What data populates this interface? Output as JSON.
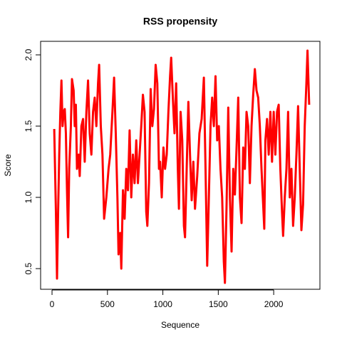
{
  "chart_data": {
    "type": "line",
    "title": "RSS propensity",
    "x_label": "Sequence",
    "y_label": "Score",
    "color": "#ff0000",
    "x": [
      20,
      35,
      45,
      55,
      65,
      75,
      85,
      95,
      105,
      115,
      125,
      135,
      145,
      155,
      170,
      180,
      195,
      205,
      215,
      225,
      240,
      250,
      265,
      280,
      295,
      310,
      325,
      340,
      355,
      370,
      385,
      400,
      415,
      425,
      440,
      455,
      470,
      490,
      510,
      525,
      545,
      560,
      575,
      590,
      600,
      615,
      625,
      640,
      655,
      670,
      685,
      700,
      715,
      730,
      745,
      760,
      775,
      790,
      805,
      820,
      835,
      850,
      860,
      875,
      890,
      905,
      920,
      935,
      950,
      965,
      975,
      990,
      1005,
      1020,
      1035,
      1050,
      1065,
      1075,
      1090,
      1105,
      1120,
      1135,
      1145,
      1160,
      1175,
      1190,
      1200,
      1215,
      1230,
      1245,
      1260,
      1275,
      1290,
      1310,
      1330,
      1350,
      1370,
      1385,
      1400,
      1415,
      1430,
      1445,
      1460,
      1475,
      1490,
      1505,
      1520,
      1535,
      1550,
      1560,
      1575,
      1590,
      1605,
      1620,
      1635,
      1650,
      1665,
      1680,
      1695,
      1710,
      1725,
      1740,
      1755,
      1770,
      1785,
      1800,
      1815,
      1830,
      1845,
      1860,
      1875,
      1890,
      1905,
      1915,
      1925,
      1940,
      1955,
      1970,
      1985,
      2000,
      2015,
      2030,
      2045,
      2060,
      2075,
      2085,
      2100,
      2115,
      2130,
      2145,
      2160,
      2175,
      2190,
      2205,
      2220,
      2235,
      2250,
      2265,
      2280,
      2295,
      2305,
      2320
    ],
    "values": [
      1.48,
      0.9,
      0.43,
      0.9,
      1.3,
      1.6,
      1.82,
      1.5,
      1.6,
      1.62,
      1.45,
      1.05,
      0.72,
      1.2,
      1.5,
      1.83,
      1.75,
      1.5,
      1.65,
      1.2,
      1.3,
      1.15,
      1.5,
      1.55,
      1.25,
      1.6,
      1.82,
      1.45,
      1.3,
      1.6,
      1.7,
      1.5,
      1.8,
      1.93,
      1.5,
      1.3,
      0.85,
      1.0,
      1.2,
      1.3,
      1.6,
      1.84,
      1.45,
      1.0,
      0.6,
      0.75,
      0.5,
      1.05,
      0.85,
      1.2,
      1.05,
      1.47,
      1.0,
      1.3,
      1.1,
      1.4,
      1.1,
      1.3,
      1.5,
      1.72,
      1.6,
      0.9,
      0.8,
      1.1,
      1.76,
      1.5,
      1.62,
      1.93,
      1.8,
      1.2,
      1.25,
      1.0,
      1.35,
      1.2,
      1.3,
      1.6,
      1.85,
      1.98,
      1.7,
      1.45,
      1.8,
      1.2,
      0.92,
      1.6,
      1.4,
      0.8,
      0.72,
      1.2,
      1.67,
      1.3,
      0.98,
      1.25,
      0.92,
      1.15,
      1.45,
      1.55,
      1.84,
      1.2,
      0.52,
      1.0,
      1.5,
      1.7,
      1.5,
      1.85,
      1.4,
      1.5,
      1.2,
      1.0,
      0.55,
      0.4,
      0.95,
      1.63,
      1.0,
      0.62,
      1.2,
      1.02,
      1.35,
      1.7,
      1.0,
      0.82,
      1.35,
      1.2,
      1.6,
      1.5,
      1.1,
      1.5,
      1.72,
      1.9,
      1.75,
      1.7,
      1.5,
      1.2,
      0.95,
      0.78,
      1.4,
      1.55,
      1.3,
      1.6,
      1.25,
      1.6,
      1.3,
      1.6,
      1.65,
      1.2,
      0.9,
      0.73,
      1.0,
      1.2,
      1.6,
      1.0,
      1.2,
      0.8,
      1.0,
      1.3,
      1.64,
      1.2,
      0.77,
      0.95,
      1.5,
      1.8,
      2.03,
      1.65
    ],
    "xlim": [
      -103,
      2417
    ],
    "ylim": [
      0.355,
      2.095
    ],
    "xticks": [
      0,
      500,
      1000,
      1500,
      2000
    ],
    "yticks": [
      0.5,
      {
        "value": 1.0,
        "label": "1.0"
      },
      1.5,
      {
        "value": 2.0,
        "label": "2.0"
      }
    ]
  }
}
